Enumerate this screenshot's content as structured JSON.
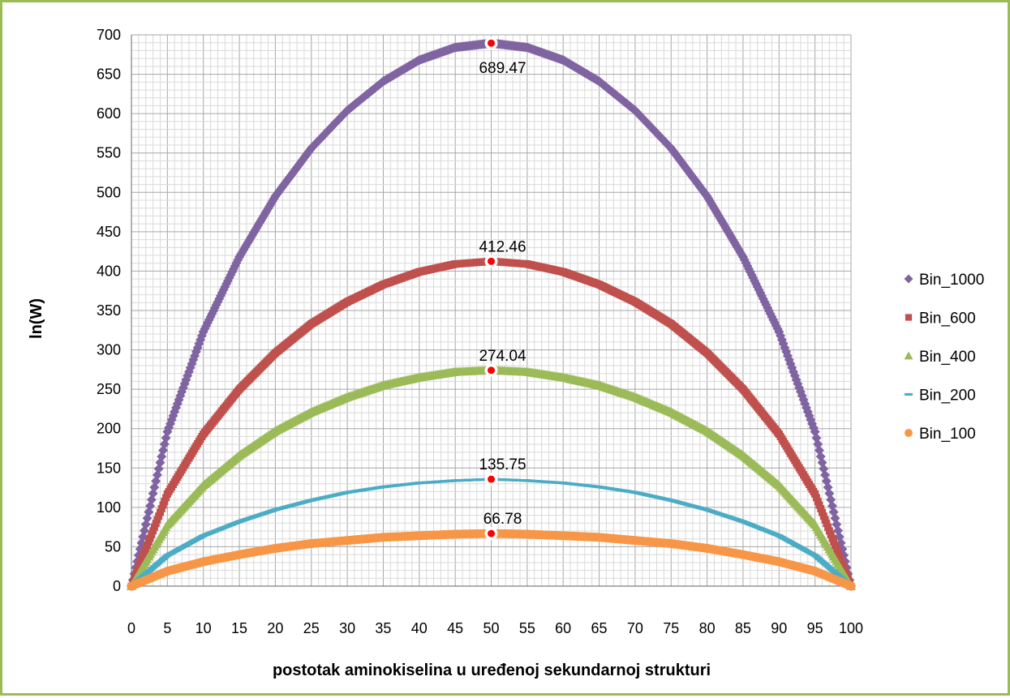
{
  "chart_data": {
    "type": "scatter",
    "title": "",
    "xlabel": "postotak aminokiselina u uređenoj sekundarnoj strukturi",
    "ylabel": "ln(W)",
    "xlim": [
      0,
      100
    ],
    "ylim": [
      0,
      700
    ],
    "x_ticks": [
      0,
      5,
      10,
      15,
      20,
      25,
      30,
      35,
      40,
      45,
      50,
      55,
      60,
      65,
      70,
      75,
      80,
      85,
      90,
      95,
      100
    ],
    "y_ticks": [
      0,
      50,
      100,
      150,
      200,
      250,
      300,
      350,
      400,
      450,
      500,
      550,
      600,
      650,
      700
    ],
    "x_tick_labels": [
      "0",
      "5",
      "10",
      "15",
      "20",
      "25",
      "30",
      "35",
      "40",
      "45",
      "50",
      "55",
      "60",
      "65",
      "70",
      "75",
      "80",
      "85",
      "90",
      "95",
      "100"
    ],
    "y_tick_labels": [
      "0",
      "50",
      "100",
      "150",
      "200",
      "250",
      "300",
      "350",
      "400",
      "450",
      "500",
      "550",
      "600",
      "650",
      "700"
    ],
    "grid": true,
    "legend_position": "right",
    "series": [
      {
        "name": "Bin_1000",
        "marker": "diamond",
        "color": "#8064a2",
        "peak_x": 50,
        "peak_y": 689.47,
        "label": "689.47",
        "x": [
          0,
          5,
          10,
          15,
          20,
          25,
          30,
          35,
          40,
          45,
          50,
          55,
          60,
          65,
          70,
          75,
          80,
          85,
          90,
          95,
          100
        ],
        "y": [
          0,
          196,
          323,
          418,
          495,
          556,
          604,
          641,
          668,
          684,
          689.47,
          684,
          668,
          641,
          604,
          556,
          495,
          418,
          323,
          196,
          0
        ]
      },
      {
        "name": "Bin_600",
        "marker": "square",
        "color": "#c0504d",
        "peak_x": 50,
        "peak_y": 412.46,
        "label": "412.46",
        "x": [
          0,
          5,
          10,
          15,
          20,
          25,
          30,
          35,
          40,
          45,
          50,
          55,
          60,
          65,
          70,
          75,
          80,
          85,
          90,
          95,
          100
        ],
        "y": [
          0,
          117,
          193,
          250,
          296,
          333,
          361,
          383,
          399,
          409,
          412.46,
          409,
          399,
          383,
          361,
          333,
          296,
          250,
          193,
          117,
          0
        ]
      },
      {
        "name": "Bin_400",
        "marker": "triangle",
        "color": "#9bbb59",
        "peak_x": 50,
        "peak_y": 274.04,
        "label": "274.04",
        "x": [
          0,
          5,
          10,
          15,
          20,
          25,
          30,
          35,
          40,
          45,
          50,
          55,
          60,
          65,
          70,
          75,
          80,
          85,
          90,
          95,
          100
        ],
        "y": [
          0,
          78,
          128,
          166,
          197,
          221,
          240,
          255,
          265,
          272,
          274.04,
          272,
          265,
          255,
          240,
          221,
          197,
          166,
          128,
          78,
          0
        ]
      },
      {
        "name": "Bin_200",
        "marker": "dash",
        "color": "#4bacc6",
        "peak_x": 50,
        "peak_y": 135.75,
        "label": "135.75",
        "x": [
          0,
          5,
          10,
          15,
          20,
          25,
          30,
          35,
          40,
          45,
          50,
          55,
          60,
          65,
          70,
          75,
          80,
          85,
          90,
          95,
          100
        ],
        "y": [
          0,
          39,
          64,
          82,
          97,
          109,
          119,
          126,
          131,
          134,
          135.75,
          134,
          131,
          126,
          119,
          109,
          97,
          82,
          64,
          39,
          0
        ]
      },
      {
        "name": "Bin_100",
        "marker": "circle",
        "color": "#f79646",
        "peak_x": 50,
        "peak_y": 66.78,
        "label": "66.78",
        "x": [
          0,
          5,
          10,
          15,
          20,
          25,
          30,
          35,
          40,
          45,
          50,
          55,
          60,
          65,
          70,
          75,
          80,
          85,
          90,
          95,
          100
        ],
        "y": [
          0,
          19,
          31,
          40,
          48,
          54,
          58,
          62,
          64,
          66,
          66.78,
          66,
          64,
          62,
          58,
          54,
          48,
          40,
          31,
          19,
          0
        ]
      }
    ],
    "highlight_color": "#ff0000"
  }
}
